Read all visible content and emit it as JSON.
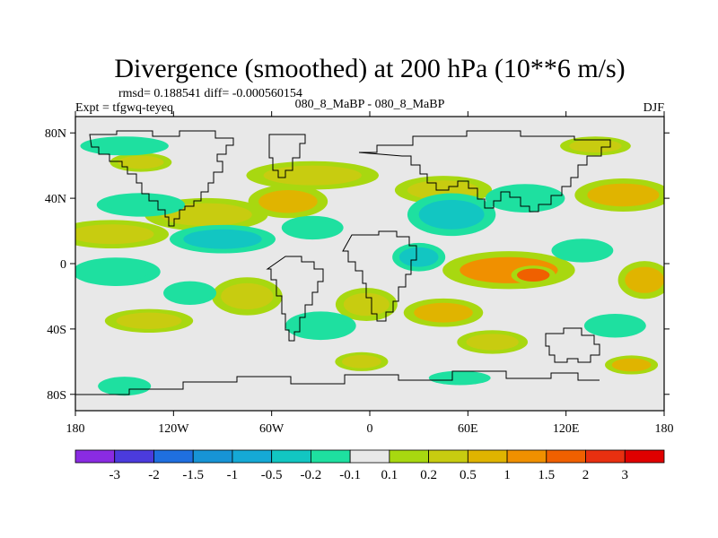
{
  "chart_data": {
    "type": "filled-contour-map",
    "title": "Divergence (smoothed) at 200 hPa (10**6 m/s)",
    "stats_text": "rmsd= 0.188541 diff= -0.000560154",
    "left_label": "Expt = tfgwq-teyeq",
    "center_label": "080_8_MaBP - 080_8_MaBP",
    "right_label": "DJF",
    "x_ticks": [
      {
        "value": -180,
        "label": "180"
      },
      {
        "value": -120,
        "label": "120W"
      },
      {
        "value": -60,
        "label": "60W"
      },
      {
        "value": 0,
        "label": "0"
      },
      {
        "value": 60,
        "label": "60E"
      },
      {
        "value": 120,
        "label": "120E"
      },
      {
        "value": 180,
        "label": "180"
      }
    ],
    "y_ticks": [
      {
        "value": 80,
        "label": "80N"
      },
      {
        "value": 40,
        "label": "40N"
      },
      {
        "value": 0,
        "label": "0"
      },
      {
        "value": -40,
        "label": "40S"
      },
      {
        "value": -80,
        "label": "80S"
      }
    ],
    "xlim": [
      -180,
      180
    ],
    "ylim": [
      -90,
      90
    ],
    "colorbar": {
      "levels": [
        "-3",
        "-2",
        "-1.5",
        "-1",
        "-0.5",
        "-0.2",
        "-0.1",
        "0.1",
        "0.2",
        "0.5",
        "1",
        "1.5",
        "2",
        "3"
      ],
      "colors": [
        "#8a2be2",
        "#4b3bdd",
        "#1f6fe0",
        "#1794d6",
        "#15a9d6",
        "#12c6c2",
        "#1ee0a0",
        "#e8e8e8",
        "#a8d810",
        "#c8cc10",
        "#e0b400",
        "#f09000",
        "#f06000",
        "#e83010",
        "#e00000"
      ]
    },
    "features": [
      {
        "name": "positive-divergence",
        "lon": -158,
        "lat": 18,
        "rx": 26,
        "ry": 6,
        "level": 9
      },
      {
        "name": "positive-divergence",
        "lon": -100,
        "lat": 30,
        "rx": 28,
        "ry": 7,
        "level": 9
      },
      {
        "name": "positive-divergence",
        "lon": -50,
        "lat": 38,
        "rx": 18,
        "ry": 7,
        "level": 10
      },
      {
        "name": "positive-divergence",
        "lon": -35,
        "lat": 54,
        "rx": 30,
        "ry": 6,
        "level": 9
      },
      {
        "name": "positive-divergence",
        "lon": 45,
        "lat": 45,
        "rx": 22,
        "ry": 6,
        "level": 9
      },
      {
        "name": "positive-divergence",
        "lon": 155,
        "lat": 42,
        "rx": 22,
        "ry": 7,
        "level": 10
      },
      {
        "name": "positive-divergence",
        "lon": 138,
        "lat": 72,
        "rx": 16,
        "ry": 4,
        "level": 9
      },
      {
        "name": "positive-divergence",
        "lon": 85,
        "lat": -4,
        "rx": 30,
        "ry": 8,
        "level": 11
      },
      {
        "name": "positive-divergence",
        "lon": 100,
        "lat": -7,
        "rx": 10,
        "ry": 4,
        "level": 12
      },
      {
        "name": "positive-divergence",
        "lon": 168,
        "lat": -10,
        "rx": 12,
        "ry": 8,
        "level": 10
      },
      {
        "name": "positive-divergence",
        "lon": -75,
        "lat": -20,
        "rx": 16,
        "ry": 8,
        "level": 9
      },
      {
        "name": "positive-divergence",
        "lon": -2,
        "lat": -25,
        "rx": 14,
        "ry": 7,
        "level": 9
      },
      {
        "name": "positive-divergence",
        "lon": 45,
        "lat": -30,
        "rx": 18,
        "ry": 6,
        "level": 10
      },
      {
        "name": "positive-divergence",
        "lon": 75,
        "lat": -48,
        "rx": 16,
        "ry": 5,
        "level": 9
      },
      {
        "name": "positive-divergence",
        "lon": -135,
        "lat": -35,
        "rx": 20,
        "ry": 5,
        "level": 9
      },
      {
        "name": "positive-divergence",
        "lon": -5,
        "lat": -60,
        "rx": 12,
        "ry": 4,
        "level": 9
      },
      {
        "name": "positive-divergence",
        "lon": 160,
        "lat": -62,
        "rx": 12,
        "ry": 4,
        "level": 10
      },
      {
        "name": "positive-divergence",
        "lon": -140,
        "lat": 62,
        "rx": 14,
        "ry": 4,
        "level": 9
      },
      {
        "name": "negative-divergence",
        "lon": -150,
        "lat": 72,
        "rx": 20,
        "ry": 4,
        "level": 6
      },
      {
        "name": "negative-divergence",
        "lon": -140,
        "lat": 36,
        "rx": 20,
        "ry": 5,
        "level": 6
      },
      {
        "name": "negative-divergence",
        "lon": -90,
        "lat": 15,
        "rx": 24,
        "ry": 6,
        "level": 5
      },
      {
        "name": "negative-divergence",
        "lon": -35,
        "lat": 22,
        "rx": 14,
        "ry": 5,
        "level": 6
      },
      {
        "name": "negative-divergence",
        "lon": 50,
        "lat": 30,
        "rx": 20,
        "ry": 9,
        "level": 5
      },
      {
        "name": "negative-divergence",
        "lon": 95,
        "lat": 40,
        "rx": 18,
        "ry": 6,
        "level": 6
      },
      {
        "name": "negative-divergence",
        "lon": 30,
        "lat": 4,
        "rx": 12,
        "ry": 6,
        "level": 5
      },
      {
        "name": "negative-divergence",
        "lon": -155,
        "lat": -5,
        "rx": 20,
        "ry": 6,
        "level": 6
      },
      {
        "name": "negative-divergence",
        "lon": -110,
        "lat": -18,
        "rx": 12,
        "ry": 5,
        "level": 6
      },
      {
        "name": "negative-divergence",
        "lon": -30,
        "lat": -38,
        "rx": 16,
        "ry": 6,
        "level": 6
      },
      {
        "name": "negative-divergence",
        "lon": 130,
        "lat": 8,
        "rx": 14,
        "ry": 5,
        "level": 6
      },
      {
        "name": "negative-divergence",
        "lon": 150,
        "lat": -38,
        "rx": 14,
        "ry": 5,
        "level": 6
      },
      {
        "name": "negative-divergence",
        "lon": -150,
        "lat": -75,
        "rx": 12,
        "ry": 4,
        "level": 6
      },
      {
        "name": "negative-divergence",
        "lon": 55,
        "lat": -70,
        "rx": 14,
        "ry": 3,
        "level": 6
      }
    ]
  }
}
